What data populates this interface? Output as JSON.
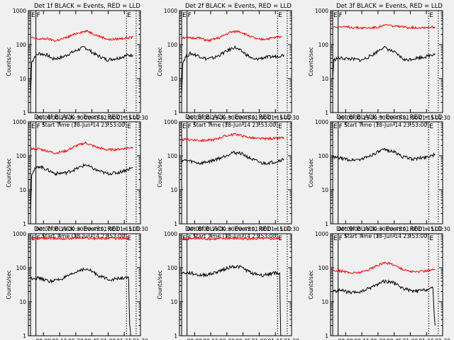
{
  "panel_template": {
    "ylabel": "Counts/sec",
    "xlabel": "Start Time (18-Jun-14 23:53:00)",
    "x_ticks": [
      "00:00",
      "00:15",
      "00:30",
      "00:45",
      "01:00",
      "01:15",
      "01:30"
    ],
    "y_ticks": [
      "1",
      "10",
      "100",
      "1000"
    ],
    "markers": [
      "E",
      "F",
      "E"
    ]
  },
  "colors": {
    "events": "#000000",
    "lld": "#ff0000",
    "axes": "#000000",
    "background": "#f0f0f0"
  },
  "chart_data": [
    {
      "type": "line",
      "title": "Det 1f BLACK = Events, RED = LLD",
      "x_unit": "minutes after 23:53:00",
      "xlim": [
        -7,
        97
      ],
      "ylim": [
        1,
        1000
      ],
      "y_scale": "log",
      "x_ticks": [
        7,
        22,
        37,
        52,
        67,
        82,
        97
      ],
      "series": [
        {
          "name": "Events",
          "color": "#000000",
          "points": [
            [
              -5,
              3
            ],
            [
              -4,
              30
            ],
            [
              -1,
              45
            ],
            [
              3,
              55
            ],
            [
              10,
              50
            ],
            [
              16,
              38
            ],
            [
              24,
              42
            ],
            [
              34,
              60
            ],
            [
              45,
              85
            ],
            [
              56,
              50
            ],
            [
              66,
              36
            ],
            [
              76,
              40
            ],
            [
              84,
              48
            ],
            [
              90,
              50
            ]
          ]
        },
        {
          "name": "LLD",
          "color": "#ff0000",
          "points": [
            [
              -5,
              160
            ],
            [
              3,
              145
            ],
            [
              10,
              150
            ],
            [
              18,
              130
            ],
            [
              28,
              160
            ],
            [
              40,
              230
            ],
            [
              48,
              250
            ],
            [
              58,
              180
            ],
            [
              68,
              140
            ],
            [
              78,
              150
            ],
            [
              90,
              165
            ]
          ]
        }
      ]
    },
    {
      "type": "line",
      "title": "Det 2f BLACK = Events, RED = LLD",
      "x_unit": "minutes after 23:53:00",
      "xlim": [
        -7,
        97
      ],
      "ylim": [
        1,
        1000
      ],
      "y_scale": "log",
      "x_ticks": [
        7,
        22,
        37,
        52,
        67,
        82,
        97
      ],
      "series": [
        {
          "name": "Events",
          "color": "#000000",
          "points": [
            [
              -5,
              3
            ],
            [
              -4,
              30
            ],
            [
              -1,
              45
            ],
            [
              3,
              55
            ],
            [
              10,
              48
            ],
            [
              18,
              38
            ],
            [
              26,
              42
            ],
            [
              35,
              60
            ],
            [
              44,
              85
            ],
            [
              52,
              60
            ],
            [
              62,
              36
            ],
            [
              72,
              42
            ],
            [
              82,
              45
            ],
            [
              90,
              50
            ]
          ]
        },
        {
          "name": "LLD",
          "color": "#ff0000",
          "points": [
            [
              -5,
              165
            ],
            [
              3,
              155
            ],
            [
              10,
              160
            ],
            [
              20,
              130
            ],
            [
              30,
              160
            ],
            [
              40,
              230
            ],
            [
              48,
              250
            ],
            [
              56,
              190
            ],
            [
              66,
              140
            ],
            [
              76,
              150
            ],
            [
              88,
              175
            ]
          ]
        }
      ]
    },
    {
      "type": "line",
      "title": "Det 3f BLACK = Events, RED = LLD",
      "x_unit": "minutes after 23:53:00",
      "xlim": [
        -7,
        97
      ],
      "ylim": [
        1,
        1000
      ],
      "y_scale": "log",
      "x_ticks": [
        7,
        22,
        37,
        52,
        67,
        82,
        97
      ],
      "series": [
        {
          "name": "Events",
          "color": "#000000",
          "points": [
            [
              -5,
              10
            ],
            [
              -4,
              35
            ],
            [
              -1,
              40
            ],
            [
              3,
              40
            ],
            [
              12,
              38
            ],
            [
              22,
              35
            ],
            [
              32,
              50
            ],
            [
              42,
              85
            ],
            [
              52,
              60
            ],
            [
              62,
              35
            ],
            [
              72,
              40
            ],
            [
              82,
              45
            ],
            [
              90,
              55
            ]
          ]
        },
        {
          "name": "LLD",
          "color": "#ff0000",
          "points": [
            [
              -5,
              340
            ],
            [
              5,
              330
            ],
            [
              15,
              320
            ],
            [
              25,
              310
            ],
            [
              35,
              320
            ],
            [
              45,
              380
            ],
            [
              55,
              340
            ],
            [
              65,
              320
            ],
            [
              75,
              320
            ],
            [
              90,
              330
            ]
          ]
        }
      ]
    },
    {
      "type": "line",
      "title": "Det 4f BLACK = Events, RED = LLD",
      "x_unit": "minutes after 23:53:00",
      "xlim": [
        -7,
        97
      ],
      "ylim": [
        1,
        1000
      ],
      "y_scale": "log",
      "x_ticks": [
        7,
        22,
        37,
        52,
        67,
        82,
        97
      ],
      "series": [
        {
          "name": "Events",
          "color": "#000000",
          "points": [
            [
              -5,
              2
            ],
            [
              -4,
              30
            ],
            [
              -1,
              40
            ],
            [
              3,
              50
            ],
            [
              10,
              40
            ],
            [
              18,
              30
            ],
            [
              28,
              32
            ],
            [
              38,
              42
            ],
            [
              46,
              55
            ],
            [
              56,
              38
            ],
            [
              66,
              30
            ],
            [
              76,
              32
            ],
            [
              90,
              45
            ]
          ]
        },
        {
          "name": "LLD",
          "color": "#ff0000",
          "points": [
            [
              -5,
              160
            ],
            [
              3,
              160
            ],
            [
              10,
              140
            ],
            [
              18,
              120
            ],
            [
              28,
              140
            ],
            [
              38,
              200
            ],
            [
              46,
              240
            ],
            [
              56,
              180
            ],
            [
              66,
              150
            ],
            [
              76,
              155
            ],
            [
              90,
              180
            ]
          ]
        }
      ]
    },
    {
      "type": "line",
      "title": "Det 5f BLACK = Events, RED = LLD",
      "x_unit": "minutes after 23:53:00",
      "xlim": [
        -7,
        97
      ],
      "ylim": [
        1,
        1000
      ],
      "y_scale": "log",
      "x_ticks": [
        7,
        22,
        37,
        52,
        67,
        82,
        97
      ],
      "series": [
        {
          "name": "Events",
          "color": "#000000",
          "points": [
            [
              -5,
              75
            ],
            [
              3,
              70
            ],
            [
              12,
              60
            ],
            [
              22,
              70
            ],
            [
              32,
              90
            ],
            [
              42,
              125
            ],
            [
              50,
              120
            ],
            [
              60,
              80
            ],
            [
              70,
              60
            ],
            [
              80,
              65
            ],
            [
              90,
              80
            ]
          ]
        },
        {
          "name": "LLD",
          "color": "#ff0000",
          "points": [
            [
              -5,
              300
            ],
            [
              5,
              300
            ],
            [
              15,
              280
            ],
            [
              25,
              300
            ],
            [
              35,
              380
            ],
            [
              45,
              440
            ],
            [
              55,
              360
            ],
            [
              65,
              320
            ],
            [
              75,
              320
            ],
            [
              90,
              340
            ]
          ]
        }
      ]
    },
    {
      "type": "line",
      "title": "Det 6f BLACK = Events, RED = LLD",
      "x_unit": "minutes after 23:53:00",
      "xlim": [
        -7,
        97
      ],
      "ylim": [
        1,
        1000
      ],
      "y_scale": "log",
      "x_ticks": [
        7,
        22,
        37,
        52,
        67,
        82,
        97
      ],
      "series": [
        {
          "name": "Events",
          "color": "#000000",
          "points": [
            [
              -5,
              90
            ],
            [
              3,
              85
            ],
            [
              12,
              75
            ],
            [
              22,
              80
            ],
            [
              32,
              110
            ],
            [
              42,
              150
            ],
            [
              50,
              140
            ],
            [
              60,
              95
            ],
            [
              70,
              80
            ],
            [
              80,
              90
            ],
            [
              90,
              110
            ]
          ]
        }
      ]
    },
    {
      "type": "line",
      "title": "Det 7f BLACK = Events, RED = LLD",
      "x_unit": "minutes after 23:53:00",
      "xlim": [
        -7,
        97
      ],
      "ylim": [
        1,
        1000
      ],
      "y_scale": "log",
      "x_ticks": [
        7,
        22,
        37,
        52,
        67,
        82,
        97
      ],
      "series": [
        {
          "name": "Events",
          "color": "#000000",
          "points": [
            [
              -5,
              50
            ],
            [
              3,
              50
            ],
            [
              12,
              40
            ],
            [
              22,
              45
            ],
            [
              32,
              60
            ],
            [
              42,
              90
            ],
            [
              50,
              85
            ],
            [
              60,
              55
            ],
            [
              70,
              45
            ],
            [
              80,
              50
            ],
            [
              86,
              50
            ],
            [
              87,
              2
            ],
            [
              88,
              1
            ]
          ]
        },
        {
          "name": "LLD",
          "color": "#ff0000",
          "points": [
            [
              -5,
              720
            ],
            [
              10,
              740
            ],
            [
              25,
              720
            ],
            [
              40,
              760
            ],
            [
              55,
              730
            ],
            [
              70,
              740
            ],
            [
              87,
              720
            ]
          ]
        }
      ]
    },
    {
      "type": "line",
      "title": "Det 8f BLACK = Events, RED = LLD",
      "x_unit": "minutes after 23:53:00",
      "xlim": [
        -7,
        97
      ],
      "ylim": [
        1,
        1000
      ],
      "y_scale": "log",
      "x_ticks": [
        7,
        22,
        37,
        52,
        67,
        82,
        97
      ],
      "series": [
        {
          "name": "Events",
          "color": "#000000",
          "points": [
            [
              -5,
              70
            ],
            [
              3,
              70
            ],
            [
              12,
              60
            ],
            [
              22,
              65
            ],
            [
              32,
              85
            ],
            [
              42,
              110
            ],
            [
              50,
              105
            ],
            [
              60,
              70
            ],
            [
              70,
              60
            ],
            [
              80,
              70
            ],
            [
              86,
              70
            ],
            [
              87,
              1
            ]
          ]
        },
        {
          "name": "LLD",
          "color": "#ff0000",
          "points": [
            [
              -5,
              700
            ],
            [
              10,
              720
            ],
            [
              25,
              700
            ],
            [
              40,
              740
            ],
            [
              55,
              710
            ],
            [
              70,
              720
            ],
            [
              87,
              710
            ]
          ]
        }
      ]
    },
    {
      "type": "line",
      "title": "Det 9f BLACK = Events, RED = LLD",
      "x_unit": "minutes after 23:53:00",
      "xlim": [
        -7,
        97
      ],
      "ylim": [
        1,
        1000
      ],
      "y_scale": "log",
      "x_ticks": [
        7,
        22,
        37,
        52,
        67,
        82,
        97
      ],
      "series": [
        {
          "name": "Events",
          "color": "#000000",
          "points": [
            [
              -5,
              20
            ],
            [
              3,
              22
            ],
            [
              12,
              18
            ],
            [
              22,
              20
            ],
            [
              32,
              28
            ],
            [
              42,
              40
            ],
            [
              50,
              38
            ],
            [
              60,
              25
            ],
            [
              70,
              20
            ],
            [
              80,
              22
            ],
            [
              88,
              25
            ],
            [
              89,
              5
            ],
            [
              90,
              2
            ]
          ]
        },
        {
          "name": "LLD",
          "color": "#ff0000",
          "points": [
            [
              -5,
              85
            ],
            [
              3,
              80
            ],
            [
              12,
              70
            ],
            [
              22,
              75
            ],
            [
              32,
              100
            ],
            [
              42,
              140
            ],
            [
              50,
              130
            ],
            [
              60,
              90
            ],
            [
              70,
              75
            ],
            [
              80,
              80
            ],
            [
              90,
              90
            ]
          ]
        }
      ]
    }
  ]
}
